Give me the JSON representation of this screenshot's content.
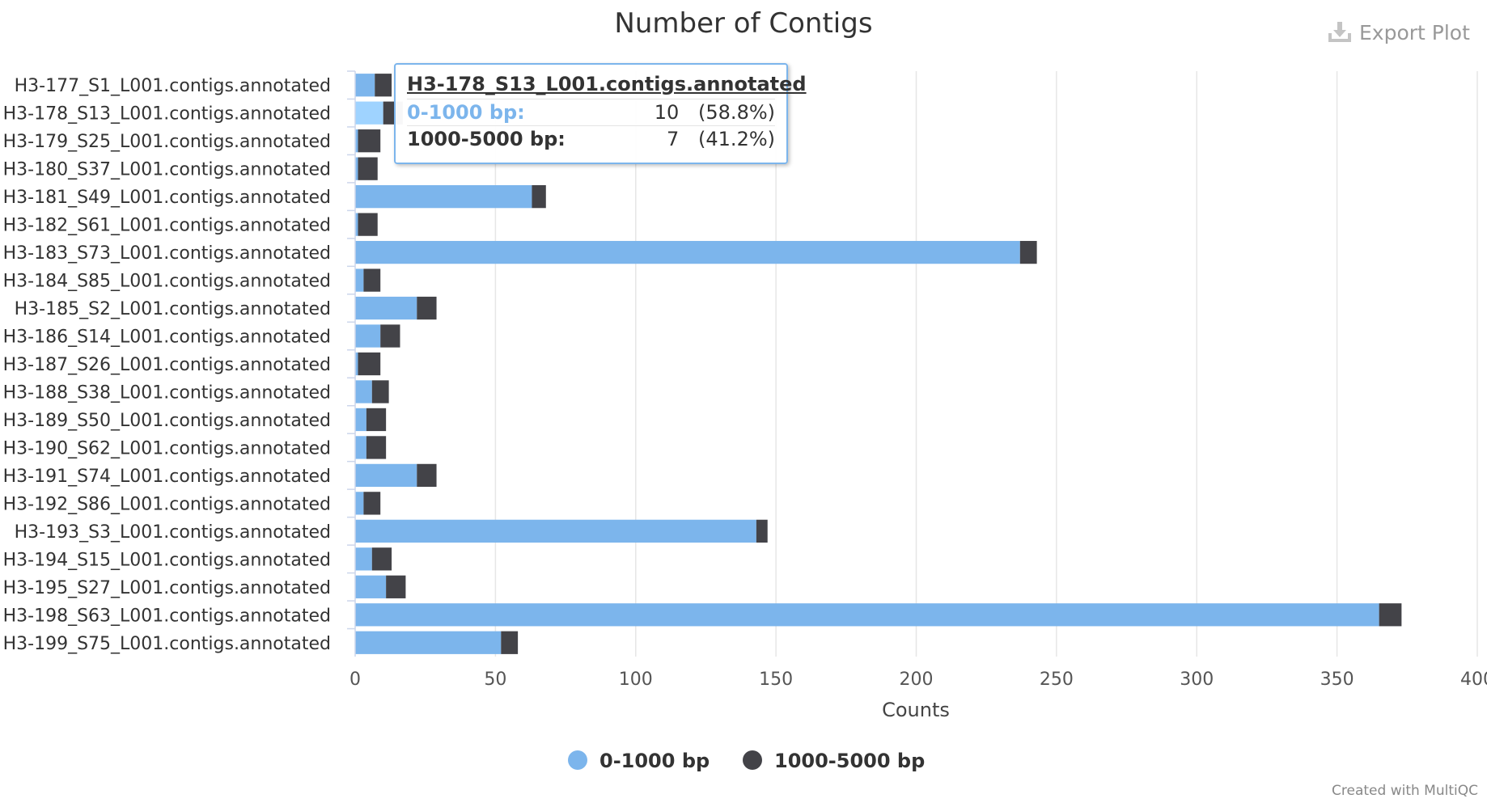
{
  "export_label": "Export Plot",
  "credits": "Created with MultiQC",
  "colors": {
    "series1": "#7cb5ec",
    "series2": "#434348",
    "highlight": "#9fd3ff",
    "grid": "#e6e6e6"
  },
  "tooltip": {
    "title": "H3-178_S13_L001.contigs.annotated",
    "rows": [
      {
        "name": "0-1000 bp:",
        "value": "10",
        "percent": "(58.8%)"
      },
      {
        "name": "1000-5000 bp:",
        "value": "7",
        "percent": "(41.2%)"
      }
    ]
  },
  "chart_data": {
    "type": "bar",
    "orientation": "horizontal",
    "stacked": true,
    "title": "Number of Contigs",
    "xlabel": "Counts",
    "ylabel": "",
    "xlim": [
      0,
      400
    ],
    "xticks": [
      0,
      50,
      100,
      150,
      200,
      250,
      300,
      350,
      400
    ],
    "grid": true,
    "legend_position": "bottom-center",
    "highlighted_category": "H3-178_S13_L001.contigs.annotated",
    "categories": [
      "H3-177_S1_L001.contigs.annotated",
      "H3-178_S13_L001.contigs.annotated",
      "H3-179_S25_L001.contigs.annotated",
      "H3-180_S37_L001.contigs.annotated",
      "H3-181_S49_L001.contigs.annotated",
      "H3-182_S61_L001.contigs.annotated",
      "H3-183_S73_L001.contigs.annotated",
      "H3-184_S85_L001.contigs.annotated",
      "H3-185_S2_L001.contigs.annotated",
      "H3-186_S14_L001.contigs.annotated",
      "H3-187_S26_L001.contigs.annotated",
      "H3-188_S38_L001.contigs.annotated",
      "H3-189_S50_L001.contigs.annotated",
      "H3-190_S62_L001.contigs.annotated",
      "H3-191_S74_L001.contigs.annotated",
      "H3-192_S86_L001.contigs.annotated",
      "H3-193_S3_L001.contigs.annotated",
      "H3-194_S15_L001.contigs.annotated",
      "H3-195_S27_L001.contigs.annotated",
      "H3-198_S63_L001.contigs.annotated",
      "H3-199_S75_L001.contigs.annotated"
    ],
    "series": [
      {
        "name": "0-1000 bp",
        "color": "#7cb5ec",
        "values": [
          7,
          10,
          1,
          1,
          63,
          1,
          237,
          3,
          22,
          9,
          1,
          6,
          4,
          4,
          22,
          3,
          143,
          6,
          11,
          365,
          52
        ]
      },
      {
        "name": "1000-5000 bp",
        "color": "#434348",
        "values": [
          6,
          7,
          8,
          7,
          5,
          7,
          6,
          6,
          7,
          7,
          8,
          6,
          7,
          7,
          7,
          6,
          4,
          7,
          7,
          8,
          6
        ]
      }
    ]
  }
}
